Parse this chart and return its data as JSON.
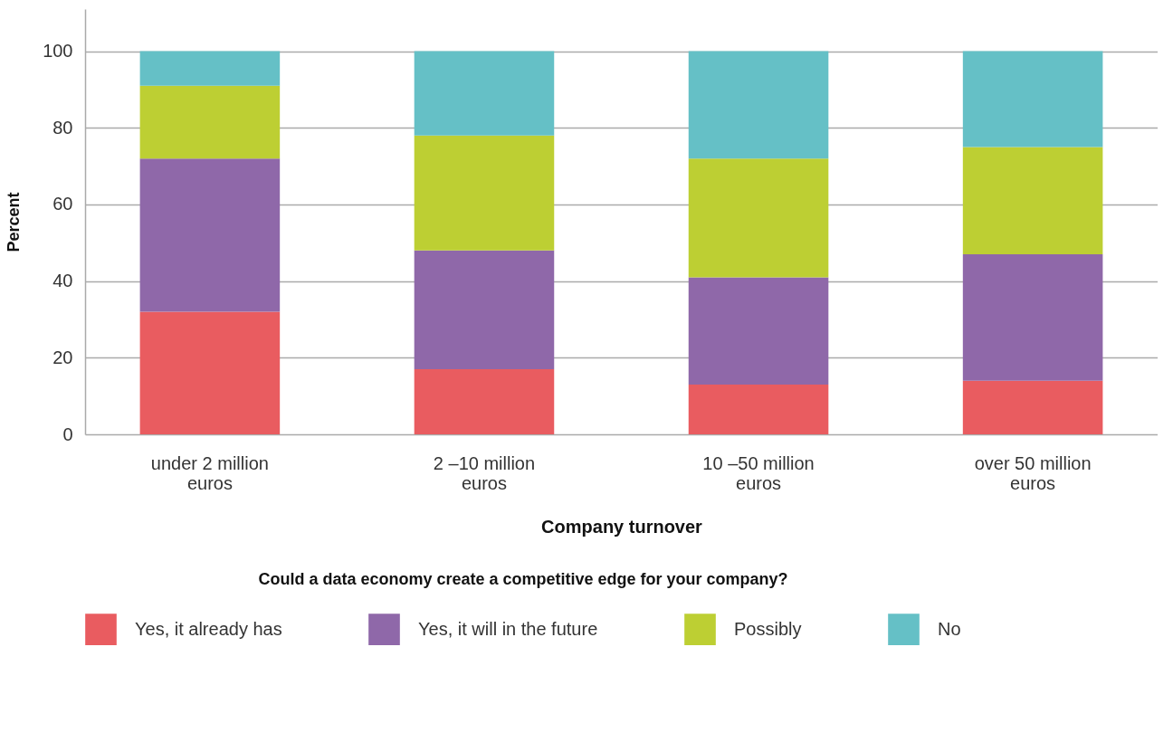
{
  "chart_data": {
    "type": "bar",
    "stacked": true,
    "xlabel": "Company turnover",
    "ylabel": "Percent",
    "legend_title": "Could a data economy create a competitive edge for your company?",
    "categories": [
      "under 2 million euros",
      "2 –10 million euros",
      "10 –50 million euros",
      "over 50 million euros"
    ],
    "series": [
      {
        "name": "Yes, it already has",
        "color": "#e95c60",
        "values": [
          32,
          17,
          13,
          14
        ]
      },
      {
        "name": "Yes, it will in the future",
        "color": "#8f68a9",
        "values": [
          40,
          31,
          28,
          33
        ]
      },
      {
        "name": "Possibly",
        "color": "#bdcf33",
        "values": [
          19,
          30,
          31,
          28
        ]
      },
      {
        "name": "No",
        "color": "#65c0c6",
        "values": [
          9,
          22,
          28,
          25
        ]
      }
    ],
    "ylim": [
      0,
      111
    ],
    "yticks": [
      0,
      20,
      40,
      60,
      80,
      100
    ],
    "grid": "y",
    "legend": "bottom"
  }
}
